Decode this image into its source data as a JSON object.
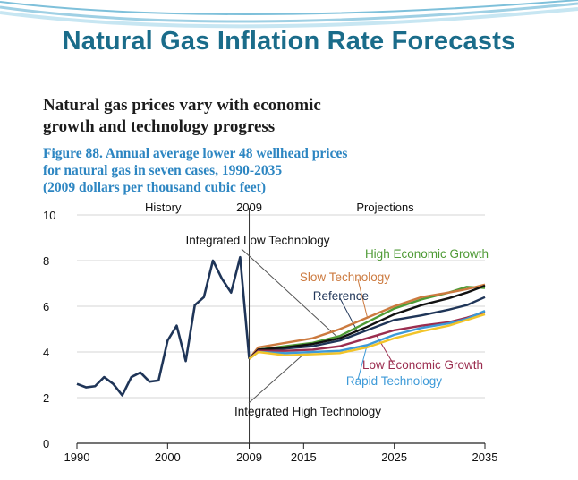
{
  "slide": {
    "title": "Natural Gas Inflation Rate Forecasts"
  },
  "figure": {
    "headline_line1": "Natural gas prices vary with economic",
    "headline_line2": "growth and technology progress",
    "caption_line1": "Figure 88. Annual average lower 48 wellhead prices",
    "caption_line2": "for natural gas in seven cases, 1990-2035",
    "caption_line3": "(2009 dollars per thousand cubic feet)"
  },
  "chart_data": {
    "type": "line",
    "title": "Figure 88. Annual average lower 48 wellhead prices for natural gas in seven cases, 1990-2035",
    "ylabel": "2009 dollars per thousand cubic feet",
    "xlim": [
      1990,
      2035
    ],
    "ylim": [
      0,
      10
    ],
    "x_ticks": [
      "1990",
      "2000",
      "2009",
      "2015",
      "2025",
      "2035"
    ],
    "y_ticks": [
      "0",
      "2",
      "4",
      "6",
      "8",
      "10"
    ],
    "segment_labels": {
      "history": "History",
      "divider": "2009",
      "projections": "Projections"
    },
    "grid": true,
    "history": {
      "x": [
        1990,
        1991,
        1992,
        1993,
        1994,
        1995,
        1996,
        1997,
        1998,
        1999,
        2000,
        2001,
        2002,
        2003,
        2004,
        2005,
        2006,
        2007,
        2008,
        2009
      ],
      "y": [
        2.6,
        2.45,
        2.5,
        2.9,
        2.6,
        2.1,
        2.9,
        3.1,
        2.7,
        2.75,
        4.5,
        5.15,
        3.6,
        6.05,
        6.4,
        8.0,
        7.2,
        6.6,
        8.15,
        3.7
      ]
    },
    "series": [
      {
        "name": "High Economic Growth",
        "color": "#4e9a35",
        "x": [
          2009,
          2010,
          2013,
          2016,
          2019,
          2022,
          2025,
          2028,
          2031,
          2033,
          2035
        ],
        "y": [
          3.7,
          4.1,
          4.25,
          4.4,
          4.7,
          5.3,
          5.9,
          6.3,
          6.6,
          6.85,
          6.8
        ]
      },
      {
        "name": "Slow Technology",
        "color": "#cc7a3f",
        "x": [
          2009,
          2010,
          2013,
          2016,
          2019,
          2022,
          2025,
          2028,
          2031,
          2033,
          2035
        ],
        "y": [
          3.7,
          4.2,
          4.4,
          4.6,
          5.0,
          5.5,
          6.0,
          6.4,
          6.6,
          6.75,
          6.95
        ]
      },
      {
        "name": "Reference",
        "color": "#1f3558",
        "x": [
          2009,
          2010,
          2013,
          2016,
          2019,
          2022,
          2025,
          2028,
          2031,
          2033,
          2035
        ],
        "y": [
          3.7,
          4.1,
          4.15,
          4.25,
          4.5,
          4.95,
          5.4,
          5.6,
          5.85,
          6.05,
          6.4
        ]
      },
      {
        "name": "Integrated Low Technology",
        "color": "#111111",
        "x": [
          2009,
          2010,
          2013,
          2016,
          2019,
          2022,
          2025,
          2028,
          2031,
          2033,
          2035
        ],
        "y": [
          3.7,
          4.1,
          4.2,
          4.35,
          4.6,
          5.1,
          5.65,
          6.05,
          6.35,
          6.6,
          6.9
        ]
      },
      {
        "name": "Low Economic Growth",
        "color": "#9b2d4f",
        "x": [
          2009,
          2010,
          2013,
          2016,
          2019,
          2022,
          2025,
          2028,
          2031,
          2033,
          2035
        ],
        "y": [
          3.7,
          4.05,
          4.05,
          4.1,
          4.25,
          4.6,
          4.95,
          5.15,
          5.3,
          5.5,
          5.75
        ]
      },
      {
        "name": "Rapid Technology",
        "color": "#3d9ad8",
        "x": [
          2009,
          2010,
          2013,
          2016,
          2019,
          2022,
          2025,
          2028,
          2031,
          2033,
          2035
        ],
        "y": [
          3.7,
          4.0,
          3.95,
          4.0,
          4.05,
          4.3,
          4.75,
          5.05,
          5.25,
          5.45,
          5.8
        ]
      },
      {
        "name": "Integrated High Technology",
        "color": "#f2c429",
        "x": [
          2009,
          2010,
          2013,
          2016,
          2019,
          2022,
          2025,
          2028,
          2031,
          2033,
          2035
        ],
        "y": [
          3.7,
          4.0,
          3.85,
          3.9,
          3.95,
          4.2,
          4.6,
          4.9,
          5.15,
          5.4,
          5.65
        ]
      }
    ],
    "labels": [
      {
        "text": "Integrated Low Technology",
        "series": "Integrated Low Technology",
        "color": "#111111"
      },
      {
        "text": "High Economic Growth",
        "series": "High Economic Growth",
        "color": "#4e9a35"
      },
      {
        "text": "Slow Technology",
        "series": "Slow Technology",
        "color": "#cc7a3f"
      },
      {
        "text": "Reference",
        "series": "Reference",
        "color": "#1f3558"
      },
      {
        "text": "Low Economic Growth",
        "series": "Low Economic Growth",
        "color": "#9b2d4f"
      },
      {
        "text": "Rapid Technology",
        "series": "Rapid Technology",
        "color": "#3d9ad8"
      },
      {
        "text": "Integrated High Technology",
        "series": "Integrated High Technology",
        "color": "#111111"
      }
    ]
  }
}
